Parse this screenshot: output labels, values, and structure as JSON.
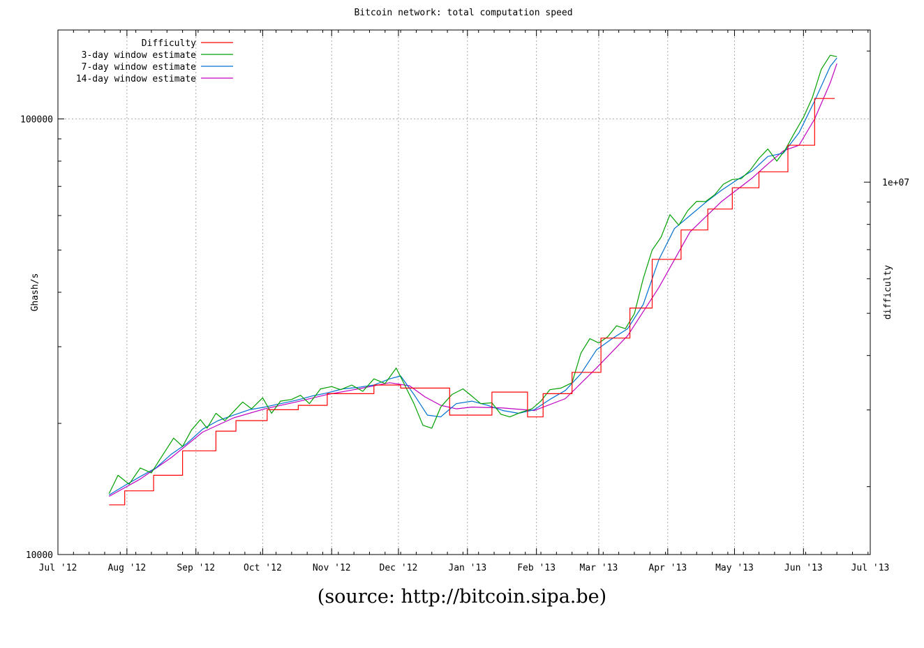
{
  "caption": "(source:  http://bitcoin.sipa.be)",
  "chart_data": {
    "type": "line",
    "title": "Bitcoin network: total computation speed",
    "ylabel": "Ghash/s",
    "y2label": "difficulty",
    "yscale": "log",
    "ylim": [
      10000,
      160000
    ],
    "y_ticks": [
      {
        "value": 10000,
        "label": "10000"
      },
      {
        "value": 100000,
        "label": "100000"
      }
    ],
    "y2_ticks": [
      {
        "value": 10000000,
        "label": "1e+07"
      }
    ],
    "xlim": [
      "2012-07-01",
      "2013-07-01"
    ],
    "x_ticks": [
      {
        "date": "2012-07-01",
        "label": "Jul '12"
      },
      {
        "date": "2012-08-01",
        "label": "Aug '12"
      },
      {
        "date": "2012-09-01",
        "label": "Sep '12"
      },
      {
        "date": "2012-10-01",
        "label": "Oct '12"
      },
      {
        "date": "2012-11-01",
        "label": "Nov '12"
      },
      {
        "date": "2012-12-01",
        "label": "Dec '12"
      },
      {
        "date": "2013-01-01",
        "label": "Jan '13"
      },
      {
        "date": "2013-02-01",
        "label": "Feb '13"
      },
      {
        "date": "2013-03-01",
        "label": "Mar '13"
      },
      {
        "date": "2013-04-01",
        "label": "Apr '13"
      },
      {
        "date": "2013-05-01",
        "label": "May '13"
      },
      {
        "date": "2013-06-01",
        "label": "Jun '13"
      },
      {
        "date": "2013-07-01",
        "label": "Jul '13"
      }
    ],
    "grid": true,
    "legend_position": "top-left",
    "series": [
      {
        "name": "Difficulty",
        "color": "#ff0000",
        "step": true,
        "points": [
          [
            "2012-07-24",
            13000
          ],
          [
            "2012-07-31",
            14000
          ],
          [
            "2012-08-13",
            15200
          ],
          [
            "2012-08-26",
            17300
          ],
          [
            "2012-09-10",
            19200
          ],
          [
            "2012-09-19",
            20300
          ],
          [
            "2012-10-03",
            21500
          ],
          [
            "2012-10-17",
            22000
          ],
          [
            "2012-10-30",
            23400
          ],
          [
            "2012-11-20",
            24500
          ],
          [
            "2012-12-02",
            24100
          ],
          [
            "2012-12-24",
            20900
          ],
          [
            "2013-01-12",
            23600
          ],
          [
            "2013-01-28",
            20700
          ],
          [
            "2013-02-04",
            23400
          ],
          [
            "2013-02-17",
            26200
          ],
          [
            "2013-03-02",
            31400
          ],
          [
            "2013-03-15",
            36800
          ],
          [
            "2013-03-25",
            47600
          ],
          [
            "2013-04-07",
            55600
          ],
          [
            "2013-04-19",
            62100
          ],
          [
            "2013-04-30",
            69500
          ],
          [
            "2013-05-12",
            75600
          ],
          [
            "2013-05-25",
            87000
          ],
          [
            "2013-06-06",
            111400
          ],
          [
            "2013-06-15",
            111400
          ]
        ]
      },
      {
        "name": "3-day window estimate",
        "color": "#00a000",
        "points": [
          [
            "2012-07-24",
            13800
          ],
          [
            "2012-07-28",
            15200
          ],
          [
            "2012-08-02",
            14500
          ],
          [
            "2012-08-07",
            15800
          ],
          [
            "2012-08-12",
            15400
          ],
          [
            "2012-08-17",
            16900
          ],
          [
            "2012-08-22",
            18500
          ],
          [
            "2012-08-26",
            17700
          ],
          [
            "2012-08-30",
            19300
          ],
          [
            "2012-09-03",
            20400
          ],
          [
            "2012-09-06",
            19500
          ],
          [
            "2012-09-10",
            21100
          ],
          [
            "2012-09-14",
            20300
          ],
          [
            "2012-09-18",
            21300
          ],
          [
            "2012-09-22",
            22400
          ],
          [
            "2012-09-26",
            21600
          ],
          [
            "2012-10-01",
            22900
          ],
          [
            "2012-10-05",
            21100
          ],
          [
            "2012-10-09",
            22500
          ],
          [
            "2012-10-14",
            22700
          ],
          [
            "2012-10-18",
            23200
          ],
          [
            "2012-10-22",
            22200
          ],
          [
            "2012-10-27",
            24000
          ],
          [
            "2012-11-01",
            24300
          ],
          [
            "2012-11-05",
            23900
          ],
          [
            "2012-11-10",
            24500
          ],
          [
            "2012-11-15",
            23700
          ],
          [
            "2012-11-20",
            25300
          ],
          [
            "2012-11-25",
            24700
          ],
          [
            "2012-11-30",
            26800
          ],
          [
            "2012-12-04",
            24400
          ],
          [
            "2012-12-08",
            22200
          ],
          [
            "2012-12-12",
            19800
          ],
          [
            "2012-12-16",
            19500
          ],
          [
            "2012-12-20",
            21800
          ],
          [
            "2012-12-25",
            23300
          ],
          [
            "2012-12-30",
            24000
          ],
          [
            "2013-01-03",
            23100
          ],
          [
            "2013-01-07",
            22200
          ],
          [
            "2013-01-12",
            22300
          ],
          [
            "2013-01-16",
            21000
          ],
          [
            "2013-01-20",
            20700
          ],
          [
            "2013-01-25",
            21200
          ],
          [
            "2013-01-30",
            21600
          ],
          [
            "2013-02-03",
            22500
          ],
          [
            "2013-02-07",
            23900
          ],
          [
            "2013-02-12",
            24100
          ],
          [
            "2013-02-17",
            24800
          ],
          [
            "2013-02-21",
            29000
          ],
          [
            "2013-02-25",
            31300
          ],
          [
            "2013-03-01",
            30600
          ],
          [
            "2013-03-05",
            31600
          ],
          [
            "2013-03-09",
            33500
          ],
          [
            "2013-03-13",
            33000
          ],
          [
            "2013-03-17",
            35700
          ],
          [
            "2013-03-21",
            43000
          ],
          [
            "2013-03-25",
            50000
          ],
          [
            "2013-03-29",
            53500
          ],
          [
            "2013-04-02",
            60300
          ],
          [
            "2013-04-06",
            57000
          ],
          [
            "2013-04-10",
            61600
          ],
          [
            "2013-04-14",
            64700
          ],
          [
            "2013-04-18",
            64600
          ],
          [
            "2013-04-22",
            66900
          ],
          [
            "2013-04-26",
            70800
          ],
          [
            "2013-04-30",
            72600
          ],
          [
            "2013-05-04",
            72900
          ],
          [
            "2013-05-08",
            76200
          ],
          [
            "2013-05-12",
            81200
          ],
          [
            "2013-05-16",
            85300
          ],
          [
            "2013-05-20",
            80000
          ],
          [
            "2013-05-24",
            85300
          ],
          [
            "2013-05-28",
            93000
          ],
          [
            "2013-06-01",
            100800
          ],
          [
            "2013-06-05",
            112000
          ],
          [
            "2013-06-09",
            130000
          ],
          [
            "2013-06-13",
            140000
          ],
          [
            "2013-06-16",
            139000
          ]
        ]
      },
      {
        "name": "7-day window estimate",
        "color": "#0070d0",
        "points": [
          [
            "2012-07-24",
            13700
          ],
          [
            "2012-07-31",
            14400
          ],
          [
            "2012-08-07",
            15100
          ],
          [
            "2012-08-14",
            15800
          ],
          [
            "2012-08-21",
            17000
          ],
          [
            "2012-08-28",
            18000
          ],
          [
            "2012-09-04",
            19400
          ],
          [
            "2012-09-11",
            20300
          ],
          [
            "2012-09-18",
            20900
          ],
          [
            "2012-09-25",
            21500
          ],
          [
            "2012-10-02",
            21800
          ],
          [
            "2012-10-09",
            22200
          ],
          [
            "2012-10-16",
            22600
          ],
          [
            "2012-10-23",
            23100
          ],
          [
            "2012-10-30",
            23500
          ],
          [
            "2012-11-06",
            24000
          ],
          [
            "2012-11-13",
            24200
          ],
          [
            "2012-11-20",
            24500
          ],
          [
            "2012-11-27",
            25300
          ],
          [
            "2012-12-02",
            25700
          ],
          [
            "2012-12-08",
            23300
          ],
          [
            "2012-12-14",
            20900
          ],
          [
            "2012-12-20",
            20700
          ],
          [
            "2012-12-27",
            22200
          ],
          [
            "2013-01-03",
            22500
          ],
          [
            "2013-01-10",
            22000
          ],
          [
            "2013-01-17",
            21400
          ],
          [
            "2013-01-24",
            21100
          ],
          [
            "2013-01-31",
            21500
          ],
          [
            "2013-02-07",
            22700
          ],
          [
            "2013-02-14",
            23800
          ],
          [
            "2013-02-21",
            26000
          ],
          [
            "2013-02-28",
            29500
          ],
          [
            "2013-03-07",
            31300
          ],
          [
            "2013-03-14",
            33000
          ],
          [
            "2013-03-21",
            37500
          ],
          [
            "2013-03-28",
            47500
          ],
          [
            "2013-04-04",
            56000
          ],
          [
            "2013-04-11",
            60000
          ],
          [
            "2013-04-18",
            64300
          ],
          [
            "2013-04-25",
            68500
          ],
          [
            "2013-05-02",
            72400
          ],
          [
            "2013-05-09",
            76000
          ],
          [
            "2013-05-16",
            82000
          ],
          [
            "2013-05-23",
            83500
          ],
          [
            "2013-05-30",
            93000
          ],
          [
            "2013-06-06",
            110000
          ],
          [
            "2013-06-13",
            132000
          ],
          [
            "2013-06-16",
            138000
          ]
        ]
      },
      {
        "name": "14-day window estimate",
        "color": "#c000c0",
        "points": [
          [
            "2012-07-24",
            13600
          ],
          [
            "2012-08-07",
            14900
          ],
          [
            "2012-08-21",
            16700
          ],
          [
            "2012-09-04",
            19100
          ],
          [
            "2012-09-18",
            20600
          ],
          [
            "2012-10-02",
            21600
          ],
          [
            "2012-10-16",
            22400
          ],
          [
            "2012-10-30",
            23300
          ],
          [
            "2012-11-13",
            24000
          ],
          [
            "2012-11-27",
            24800
          ],
          [
            "2012-12-06",
            24400
          ],
          [
            "2012-12-13",
            23000
          ],
          [
            "2012-12-20",
            22000
          ],
          [
            "2012-12-27",
            21600
          ],
          [
            "2013-01-03",
            21800
          ],
          [
            "2013-01-17",
            21700
          ],
          [
            "2013-01-31",
            21400
          ],
          [
            "2013-02-14",
            22800
          ],
          [
            "2013-02-28",
            26800
          ],
          [
            "2013-03-14",
            31800
          ],
          [
            "2013-03-28",
            41000
          ],
          [
            "2013-04-11",
            55000
          ],
          [
            "2013-04-25",
            64500
          ],
          [
            "2013-05-09",
            73200
          ],
          [
            "2013-05-16",
            78800
          ],
          [
            "2013-05-23",
            84500
          ],
          [
            "2013-05-30",
            87000
          ],
          [
            "2013-06-06",
            100000
          ],
          [
            "2013-06-13",
            121000
          ],
          [
            "2013-06-16",
            134000
          ]
        ]
      }
    ]
  }
}
